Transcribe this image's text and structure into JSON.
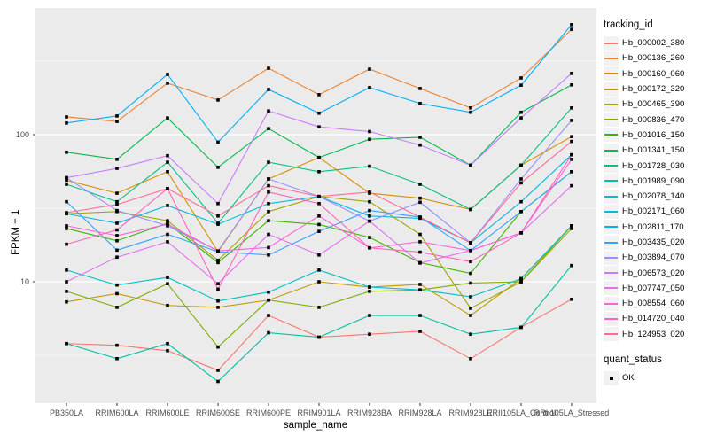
{
  "colors": {
    "panel_bg": "#EBEBEB",
    "grid_major": "#FFFFFF",
    "grid_minor": "#FFFFFF",
    "tick_text": "#4D4D4D",
    "axis_text": "#000000",
    "marker": "#000000",
    "legend_key_bg": "#F2F2F2"
  },
  "legend": {
    "tracking_title": "tracking_id",
    "quant_title": "quant_status",
    "quant_items": [
      {
        "label": "OK"
      }
    ]
  },
  "y_axis": {
    "label": "FPKM + 1",
    "tick_values": [
      100,
      10
    ],
    "tick_labels": [
      "100",
      "10"
    ]
  },
  "x_axis": {
    "label": "sample_name"
  },
  "chart_data": {
    "type": "line",
    "title": "",
    "xlabel": "sample_name",
    "ylabel": "FPKM + 1",
    "y_scale": "log10",
    "ylim": [
      1.5,
      750
    ],
    "y_ticks": [
      10,
      100
    ],
    "y_minor_gridlines": [
      3.162,
      31.62,
      316.2
    ],
    "grid": true,
    "legend_position": "right",
    "legend_title": "tracking_id",
    "marker": "black-square (quant_status OK)",
    "categories": [
      "PB350LA",
      "RRIM600LA",
      "RRIM600LE",
      "RRIM600SE",
      "RRIM600PE",
      "RRIM901LA",
      "RRIM928BA",
      "RRIM928LA",
      "RRIM928LE",
      "RRII105LA_Control",
      "RRII105LA_Stressed"
    ],
    "series": [
      {
        "name": "Hb_000002_380",
        "color": "#F8766D",
        "values": [
          3.8,
          3.7,
          3.4,
          2.5,
          5.9,
          4.2,
          4.4,
          4.6,
          3.0,
          4.9,
          7.6
        ]
      },
      {
        "name": "Hb_000136_260",
        "color": "#EA8331",
        "values": [
          132,
          123,
          224,
          172,
          283,
          187,
          279,
          206,
          152,
          243,
          520
        ]
      },
      {
        "name": "Hb_000160_060",
        "color": "#D89000",
        "values": [
          49,
          40,
          56,
          16,
          50,
          70,
          40,
          37,
          31,
          62,
          97
        ]
      },
      {
        "name": "Hb_000172_320",
        "color": "#C09B00",
        "values": [
          7.3,
          8.3,
          6.9,
          6.7,
          7.5,
          10,
          9.2,
          9.6,
          5.9,
          10.5,
          24
        ]
      },
      {
        "name": "Hb_000465_390",
        "color": "#A3A500",
        "values": [
          29,
          30,
          26,
          14,
          30,
          38,
          35,
          21,
          6.6,
          10,
          23
        ]
      },
      {
        "name": "Hb_000836_470",
        "color": "#7CAE00",
        "values": [
          8.6,
          6.7,
          9.7,
          3.6,
          7.5,
          6.7,
          8.6,
          8.8,
          9.8,
          10,
          24
        ]
      },
      {
        "name": "Hb_001016_150",
        "color": "#39B600",
        "values": [
          23,
          19,
          25,
          13.5,
          26,
          24.5,
          20,
          13.5,
          11.4,
          30,
          56
        ]
      },
      {
        "name": "Hb_001341_150",
        "color": "#00BB4E",
        "values": [
          76,
          68,
          130,
          60,
          110,
          70,
          93,
          96,
          62,
          142,
          218
        ]
      },
      {
        "name": "Hb_001728_030",
        "color": "#00C087",
        "values": [
          46,
          35,
          65,
          25,
          65,
          56,
          61,
          46,
          31,
          62,
          152
        ]
      },
      {
        "name": "Hb_001989_090",
        "color": "#00C1A3",
        "values": [
          3.8,
          3.0,
          3.8,
          2.1,
          4.5,
          4.2,
          5.9,
          5.9,
          4.4,
          4.9,
          12.9
        ]
      },
      {
        "name": "Hb_002078_140",
        "color": "#00BFC4",
        "values": [
          12,
          9.5,
          10.7,
          7.4,
          8.5,
          12,
          9.2,
          8.8,
          7.9,
          10.5,
          24
        ]
      },
      {
        "name": "Hb_002171_060",
        "color": "#00BAE0",
        "values": [
          29,
          25,
          33,
          24.6,
          34,
          38,
          28,
          27,
          18.4,
          35,
          73
        ]
      },
      {
        "name": "Hb_002811_170",
        "color": "#00B0F6",
        "values": [
          120,
          134,
          257,
          89,
          203,
          140,
          209,
          163,
          142,
          217,
          560
        ]
      },
      {
        "name": "Hb_003435_020",
        "color": "#35A2FF",
        "values": [
          35,
          16.4,
          21,
          16,
          15.2,
          22,
          30.5,
          27.5,
          16.3,
          30,
          56
        ]
      },
      {
        "name": "Hb_003894_070",
        "color": "#9590FF",
        "values": [
          51,
          30.5,
          24,
          16.2,
          50,
          38,
          25.8,
          34.7,
          18.4,
          50,
          125
        ]
      },
      {
        "name": "Hb_006573_020",
        "color": "#C77CFF",
        "values": [
          51,
          59,
          72,
          34,
          145,
          113,
          105,
          85,
          62,
          130,
          261
        ]
      },
      {
        "name": "Hb_007747_050",
        "color": "#E76BF3",
        "values": [
          10,
          14.7,
          18.7,
          9.7,
          21,
          15.2,
          25.8,
          13.4,
          16.3,
          21.5,
          45
        ]
      },
      {
        "name": "Hb_008554_060",
        "color": "#FA62DB",
        "values": [
          24,
          20.6,
          24.6,
          16.2,
          17.1,
          28,
          17,
          18.7,
          16.3,
          21.5,
          68
        ]
      },
      {
        "name": "Hb_014720_040",
        "color": "#FF62BC",
        "values": [
          18,
          22.5,
          43,
          8.9,
          40.7,
          34,
          17,
          15.9,
          13.7,
          21.5,
          73
        ]
      },
      {
        "name": "Hb_124953_020",
        "color": "#FF6A98",
        "values": [
          29.5,
          33.5,
          43,
          28,
          45,
          38,
          40.7,
          27.5,
          18.4,
          47,
          90
        ]
      }
    ]
  }
}
